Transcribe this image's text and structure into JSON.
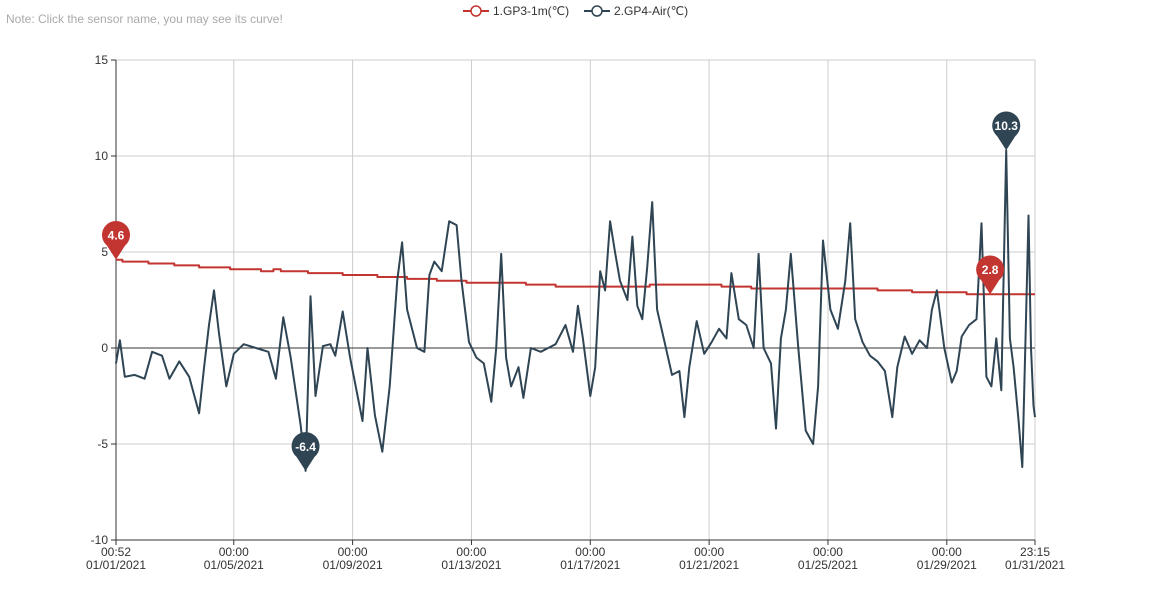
{
  "note": "Note: Click the sensor name, you may see its curve!",
  "colors": {
    "gp3": "#c23531",
    "gp4": "#2f4554",
    "grid": "#cccccc",
    "axis": "#333333"
  },
  "chart_data": {
    "type": "line",
    "title": "",
    "ylim": [
      -10,
      15
    ],
    "yticks": [
      -10,
      -5,
      0,
      5,
      10,
      15
    ],
    "xlim": [
      "2021-01-01 00:52",
      "2021-01-31 23:15"
    ],
    "xticks": [
      {
        "t": "2021-01-01 00:52",
        "time": "00:52",
        "date": "01/01/2021"
      },
      {
        "t": "2021-01-05 00:00",
        "time": "00:00",
        "date": "01/05/2021"
      },
      {
        "t": "2021-01-09 00:00",
        "time": "00:00",
        "date": "01/09/2021"
      },
      {
        "t": "2021-01-13 00:00",
        "time": "00:00",
        "date": "01/13/2021"
      },
      {
        "t": "2021-01-17 00:00",
        "time": "00:00",
        "date": "01/17/2021"
      },
      {
        "t": "2021-01-21 00:00",
        "time": "00:00",
        "date": "01/21/2021"
      },
      {
        "t": "2021-01-25 00:00",
        "time": "00:00",
        "date": "01/25/2021"
      },
      {
        "t": "2021-01-29 00:00",
        "time": "00:00",
        "date": "01/29/2021"
      },
      {
        "t": "2021-01-31 23:15",
        "time": "23:15",
        "date": "01/31/2021"
      }
    ],
    "grid": true,
    "legend_position": "top-center",
    "series": [
      {
        "name": "1.GP3-1m(℃)",
        "color": "#c23531",
        "step": true,
        "points": [
          [
            "2021-01-01 00:52",
            4.6
          ],
          [
            "2021-01-01 06:00",
            4.5
          ],
          [
            "2021-01-02 03:00",
            4.4
          ],
          [
            "2021-01-03 00:00",
            4.3
          ],
          [
            "2021-01-03 20:00",
            4.2
          ],
          [
            "2021-01-04 21:00",
            4.1
          ],
          [
            "2021-01-05 22:00",
            4.0
          ],
          [
            "2021-01-06 08:00",
            4.1
          ],
          [
            "2021-01-06 14:00",
            4.0
          ],
          [
            "2021-01-07 12:00",
            3.9
          ],
          [
            "2021-01-08 16:00",
            3.8
          ],
          [
            "2021-01-09 20:00",
            3.7
          ],
          [
            "2021-01-10 20:00",
            3.6
          ],
          [
            "2021-01-11 20:00",
            3.5
          ],
          [
            "2021-01-12 20:00",
            3.4
          ],
          [
            "2021-01-14 20:00",
            3.3
          ],
          [
            "2021-01-15 20:00",
            3.2
          ],
          [
            "2021-01-19 00:00",
            3.3
          ],
          [
            "2021-01-21 10:00",
            3.2
          ],
          [
            "2021-01-22 10:00",
            3.1
          ],
          [
            "2021-01-26 16:00",
            3.0
          ],
          [
            "2021-01-27 20:00",
            2.9
          ],
          [
            "2021-01-29 16:00",
            2.8
          ],
          [
            "2021-01-31 23:15",
            2.8
          ]
        ]
      },
      {
        "name": "2.GP4-Air(℃)",
        "color": "#2f4554",
        "step": false,
        "points": [
          [
            "2021-01-01 00:52",
            -0.8
          ],
          [
            "2021-01-01 04:00",
            0.4
          ],
          [
            "2021-01-01 08:00",
            -1.5
          ],
          [
            "2021-01-01 16:00",
            -1.4
          ],
          [
            "2021-01-02 00:00",
            -1.6
          ],
          [
            "2021-01-02 06:00",
            -0.2
          ],
          [
            "2021-01-02 14:00",
            -0.4
          ],
          [
            "2021-01-02 20:00",
            -1.6
          ],
          [
            "2021-01-03 04:00",
            -0.7
          ],
          [
            "2021-01-03 12:00",
            -1.5
          ],
          [
            "2021-01-03 20:00",
            -3.4
          ],
          [
            "2021-01-04 00:00",
            -1.0
          ],
          [
            "2021-01-04 04:00",
            1.2
          ],
          [
            "2021-01-04 08:00",
            3.0
          ],
          [
            "2021-01-04 12:00",
            0.8
          ],
          [
            "2021-01-04 18:00",
            -2.0
          ],
          [
            "2021-01-05 00:00",
            -0.3
          ],
          [
            "2021-01-05 08:00",
            0.2
          ],
          [
            "2021-01-05 18:00",
            0.0
          ],
          [
            "2021-01-06 04:00",
            -0.2
          ],
          [
            "2021-01-06 10:00",
            -1.6
          ],
          [
            "2021-01-06 16:00",
            1.6
          ],
          [
            "2021-01-06 22:00",
            -0.5
          ],
          [
            "2021-01-07 06:00",
            -4.0
          ],
          [
            "2021-01-07 10:00",
            -6.4
          ],
          [
            "2021-01-07 14:00",
            2.7
          ],
          [
            "2021-01-07 18:00",
            -2.5
          ],
          [
            "2021-01-08 00:00",
            0.1
          ],
          [
            "2021-01-08 06:00",
            0.2
          ],
          [
            "2021-01-08 10:00",
            -0.4
          ],
          [
            "2021-01-08 16:00",
            1.9
          ],
          [
            "2021-01-08 22:00",
            -0.5
          ],
          [
            "2021-01-09 04:00",
            -2.5
          ],
          [
            "2021-01-09 08:00",
            -3.8
          ],
          [
            "2021-01-09 12:00",
            0.0
          ],
          [
            "2021-01-09 18:00",
            -3.5
          ],
          [
            "2021-01-10 00:00",
            -5.4
          ],
          [
            "2021-01-10 06:00",
            -2.0
          ],
          [
            "2021-01-10 12:00",
            3.5
          ],
          [
            "2021-01-10 16:00",
            5.5
          ],
          [
            "2021-01-10 20:00",
            2.0
          ],
          [
            "2021-01-11 04:00",
            0.0
          ],
          [
            "2021-01-11 10:00",
            -0.2
          ],
          [
            "2021-01-11 14:00",
            3.8
          ],
          [
            "2021-01-11 18:00",
            4.5
          ],
          [
            "2021-01-12 00:00",
            4.0
          ],
          [
            "2021-01-12 06:00",
            6.6
          ],
          [
            "2021-01-12 12:00",
            6.4
          ],
          [
            "2021-01-12 16:00",
            3.5
          ],
          [
            "2021-01-12 22:00",
            0.3
          ],
          [
            "2021-01-13 04:00",
            -0.5
          ],
          [
            "2021-01-13 10:00",
            -0.8
          ],
          [
            "2021-01-13 16:00",
            -2.8
          ],
          [
            "2021-01-13 20:00",
            0.0
          ],
          [
            "2021-01-14 00:00",
            4.9
          ],
          [
            "2021-01-14 04:00",
            -0.5
          ],
          [
            "2021-01-14 08:00",
            -2.0
          ],
          [
            "2021-01-14 14:00",
            -1.0
          ],
          [
            "2021-01-14 18:00",
            -2.6
          ],
          [
            "2021-01-15 00:00",
            0.0
          ],
          [
            "2021-01-15 08:00",
            -0.2
          ],
          [
            "2021-01-15 14:00",
            0.0
          ],
          [
            "2021-01-15 20:00",
            0.2
          ],
          [
            "2021-01-16 04:00",
            1.2
          ],
          [
            "2021-01-16 10:00",
            -0.2
          ],
          [
            "2021-01-16 14:00",
            2.2
          ],
          [
            "2021-01-16 18:00",
            0.5
          ],
          [
            "2021-01-17 00:00",
            -2.5
          ],
          [
            "2021-01-17 04:00",
            -1.0
          ],
          [
            "2021-01-17 08:00",
            4.0
          ],
          [
            "2021-01-17 12:00",
            3.0
          ],
          [
            "2021-01-17 16:00",
            6.6
          ],
          [
            "2021-01-17 20:00",
            5.0
          ],
          [
            "2021-01-18 00:00",
            3.5
          ],
          [
            "2021-01-18 06:00",
            2.5
          ],
          [
            "2021-01-18 10:00",
            5.8
          ],
          [
            "2021-01-18 14:00",
            2.2
          ],
          [
            "2021-01-18 18:00",
            1.5
          ],
          [
            "2021-01-18 22:00",
            4.2
          ],
          [
            "2021-01-19 02:00",
            7.6
          ],
          [
            "2021-01-19 06:00",
            2.0
          ],
          [
            "2021-01-19 12:00",
            0.3
          ],
          [
            "2021-01-19 18:00",
            -1.4
          ],
          [
            "2021-01-20 00:00",
            -1.2
          ],
          [
            "2021-01-20 04:00",
            -3.6
          ],
          [
            "2021-01-20 08:00",
            -1.0
          ],
          [
            "2021-01-20 14:00",
            1.4
          ],
          [
            "2021-01-20 20:00",
            -0.3
          ],
          [
            "2021-01-21 02:00",
            0.3
          ],
          [
            "2021-01-21 08:00",
            1.0
          ],
          [
            "2021-01-21 14:00",
            0.5
          ],
          [
            "2021-01-21 18:00",
            3.9
          ],
          [
            "2021-01-22 00:00",
            1.5
          ],
          [
            "2021-01-22 06:00",
            1.2
          ],
          [
            "2021-01-22 12:00",
            0.0
          ],
          [
            "2021-01-22 16:00",
            4.9
          ],
          [
            "2021-01-22 20:00",
            0.0
          ],
          [
            "2021-01-23 02:00",
            -0.8
          ],
          [
            "2021-01-23 06:00",
            -4.2
          ],
          [
            "2021-01-23 10:00",
            0.5
          ],
          [
            "2021-01-23 14:00",
            2.0
          ],
          [
            "2021-01-23 18:00",
            4.9
          ],
          [
            "2021-01-24 00:00",
            0.0
          ],
          [
            "2021-01-24 06:00",
            -4.3
          ],
          [
            "2021-01-24 12:00",
            -5.0
          ],
          [
            "2021-01-24 16:00",
            -2.0
          ],
          [
            "2021-01-24 20:00",
            5.6
          ],
          [
            "2021-01-25 02:00",
            2.0
          ],
          [
            "2021-01-25 08:00",
            1.0
          ],
          [
            "2021-01-25 14:00",
            3.5
          ],
          [
            "2021-01-25 18:00",
            6.5
          ],
          [
            "2021-01-25 22:00",
            1.5
          ],
          [
            "2021-01-26 04:00",
            0.3
          ],
          [
            "2021-01-26 10:00",
            -0.4
          ],
          [
            "2021-01-26 16:00",
            -0.7
          ],
          [
            "2021-01-26 22:00",
            -1.2
          ],
          [
            "2021-01-27 04:00",
            -3.6
          ],
          [
            "2021-01-27 08:00",
            -1.0
          ],
          [
            "2021-01-27 14:00",
            0.6
          ],
          [
            "2021-01-27 20:00",
            -0.3
          ],
          [
            "2021-01-28 02:00",
            0.4
          ],
          [
            "2021-01-28 08:00",
            0.0
          ],
          [
            "2021-01-28 12:00",
            2.0
          ],
          [
            "2021-01-28 16:00",
            3.0
          ],
          [
            "2021-01-28 22:00",
            0.0
          ],
          [
            "2021-01-29 04:00",
            -1.8
          ],
          [
            "2021-01-29 08:00",
            -1.2
          ],
          [
            "2021-01-29 12:00",
            0.6
          ],
          [
            "2021-01-29 18:00",
            1.2
          ],
          [
            "2021-01-30 00:00",
            1.5
          ],
          [
            "2021-01-30 04:00",
            6.5
          ],
          [
            "2021-01-30 08:00",
            -1.5
          ],
          [
            "2021-01-30 12:00",
            -2.0
          ],
          [
            "2021-01-30 16:00",
            0.5
          ],
          [
            "2021-01-30 20:00",
            -2.2
          ],
          [
            "2021-01-31 00:00",
            10.3
          ],
          [
            "2021-01-31 03:00",
            0.5
          ],
          [
            "2021-01-31 06:00",
            -1.0
          ],
          [
            "2021-01-31 10:00",
            -3.8
          ],
          [
            "2021-01-31 13:00",
            -6.2
          ],
          [
            "2021-01-31 16:00",
            1.5
          ],
          [
            "2021-01-31 18:00",
            6.9
          ],
          [
            "2021-01-31 20:00",
            0.0
          ],
          [
            "2021-01-31 22:00",
            -3.0
          ],
          [
            "2021-01-31 23:15",
            -3.6
          ]
        ]
      }
    ],
    "markers": [
      {
        "series": 0,
        "label": "4.6",
        "t": "2021-01-01 00:52",
        "value": 4.6
      },
      {
        "series": 0,
        "label": "2.8",
        "t": "2021-01-30 11:00",
        "value": 2.8
      },
      {
        "series": 1,
        "label": "-6.4",
        "t": "2021-01-07 10:00",
        "value": -6.4
      },
      {
        "series": 1,
        "label": "10.3",
        "t": "2021-01-31 00:00",
        "value": 10.3
      }
    ]
  }
}
